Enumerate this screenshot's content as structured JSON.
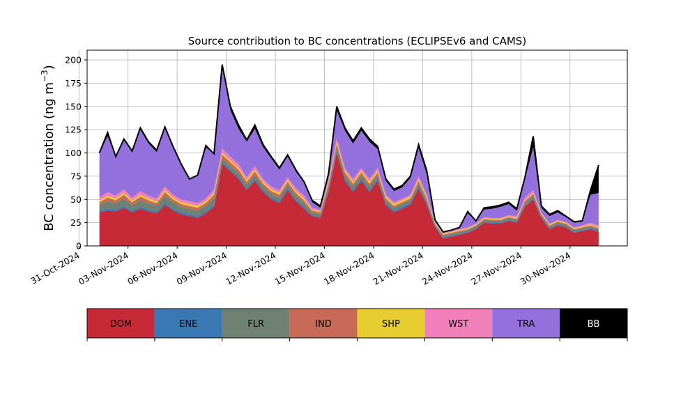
{
  "chart_data": {
    "type": "area",
    "stacked": true,
    "title": "Source contribution to BC concentrations (ECLIPSEv6 and CAMS)",
    "ylabel_base": "BC concentration (ng m",
    "ylabel_sup": "−3",
    "ylabel_close": ")",
    "ylim": [
      0,
      200
    ],
    "yticks": [
      0,
      25,
      50,
      75,
      100,
      125,
      150,
      175,
      200
    ],
    "xlim": [
      "2024-10-31T12:00",
      "2024-12-03T12:00"
    ],
    "xticks": [
      {
        "date": "2024-10-31",
        "label": "31-Oct-2024"
      },
      {
        "date": "2024-11-03",
        "label": "03-Nov-2024"
      },
      {
        "date": "2024-11-06",
        "label": "06-Nov-2024"
      },
      {
        "date": "2024-11-09",
        "label": "09-Nov-2024"
      },
      {
        "date": "2024-11-12",
        "label": "12-Nov-2024"
      },
      {
        "date": "2024-11-15",
        "label": "15-Nov-2024"
      },
      {
        "date": "2024-11-18",
        "label": "18-Nov-2024"
      },
      {
        "date": "2024-11-21",
        "label": "21-Nov-2024"
      },
      {
        "date": "2024-11-24",
        "label": "24-Nov-2024"
      },
      {
        "date": "2024-11-27",
        "label": "27-Nov-2024"
      },
      {
        "date": "2024-11-30",
        "label": "30-Nov-2024"
      }
    ],
    "grid": true,
    "legend_position": "below",
    "x": [
      "2024-11-01T06:00",
      "2024-11-01T18:00",
      "2024-11-02T06:00",
      "2024-11-02T18:00",
      "2024-11-03T06:00",
      "2024-11-03T18:00",
      "2024-11-04T06:00",
      "2024-11-04T18:00",
      "2024-11-05T06:00",
      "2024-11-05T18:00",
      "2024-11-06T06:00",
      "2024-11-06T18:00",
      "2024-11-07T06:00",
      "2024-11-07T18:00",
      "2024-11-08T06:00",
      "2024-11-08T18:00",
      "2024-11-09T06:00",
      "2024-11-09T18:00",
      "2024-11-10T06:00",
      "2024-11-10T18:00",
      "2024-11-11T06:00",
      "2024-11-11T18:00",
      "2024-11-12T06:00",
      "2024-11-12T18:00",
      "2024-11-13T06:00",
      "2024-11-13T18:00",
      "2024-11-14T06:00",
      "2024-11-14T18:00",
      "2024-11-15T06:00",
      "2024-11-15T18:00",
      "2024-11-16T06:00",
      "2024-11-16T18:00",
      "2024-11-17T06:00",
      "2024-11-17T18:00",
      "2024-11-18T06:00",
      "2024-11-18T18:00",
      "2024-11-19T06:00",
      "2024-11-19T18:00",
      "2024-11-20T06:00",
      "2024-11-20T18:00",
      "2024-11-21T06:00",
      "2024-11-21T18:00",
      "2024-11-22T06:00",
      "2024-11-22T18:00",
      "2024-11-23T06:00",
      "2024-11-23T18:00",
      "2024-11-24T06:00",
      "2024-11-24T18:00",
      "2024-11-25T06:00",
      "2024-11-25T18:00",
      "2024-11-26T06:00",
      "2024-11-26T18:00",
      "2024-11-27T06:00",
      "2024-11-27T18:00",
      "2024-11-28T06:00",
      "2024-11-28T18:00",
      "2024-11-29T06:00",
      "2024-11-29T18:00",
      "2024-11-30T06:00",
      "2024-11-30T18:00",
      "2024-12-01T06:00",
      "2024-12-01T18:00"
    ],
    "series": [
      {
        "name": "DOM",
        "color": "#c62a37",
        "values": [
          36,
          38,
          37,
          41,
          36,
          40,
          37,
          35,
          44,
          38,
          34,
          32,
          30,
          35,
          42,
          88,
          80,
          72,
          60,
          70,
          58,
          50,
          46,
          60,
          48,
          40,
          32,
          30,
          58,
          100,
          70,
          58,
          70,
          58,
          70,
          44,
          36,
          40,
          44,
          62,
          44,
          20,
          8,
          10,
          12,
          14,
          18,
          25,
          24,
          24,
          27,
          25,
          42,
          50,
          30,
          18,
          22,
          20,
          14,
          16,
          18,
          15
        ]
      },
      {
        "name": "ENE",
        "color": "#3978b2",
        "values": [
          2,
          2,
          2,
          2,
          2,
          2,
          2,
          2,
          2,
          2,
          2,
          2,
          2,
          2,
          2,
          2,
          2,
          2,
          2,
          2,
          2,
          2,
          2,
          2,
          2,
          2,
          1,
          1,
          2,
          2,
          2,
          2,
          2,
          2,
          2,
          2,
          2,
          2,
          2,
          2,
          2,
          1,
          1,
          1,
          1,
          1,
          1,
          1,
          1,
          1,
          1,
          1,
          1,
          1,
          1,
          1,
          1,
          1,
          1,
          1,
          1,
          1
        ]
      },
      {
        "name": "FLR",
        "color": "#6f8172",
        "values": [
          6,
          8,
          7,
          8,
          6,
          7,
          7,
          6,
          8,
          7,
          6,
          6,
          6,
          6,
          7,
          4,
          4,
          4,
          4,
          4,
          4,
          4,
          4,
          4,
          4,
          4,
          3,
          3,
          4,
          4,
          4,
          4,
          4,
          4,
          4,
          3,
          3,
          3,
          3,
          3,
          3,
          2,
          2,
          2,
          2,
          2,
          2,
          2,
          2,
          2,
          2,
          2,
          3,
          3,
          2,
          2,
          2,
          2,
          2,
          2,
          2,
          2
        ]
      },
      {
        "name": "IND",
        "color": "#c86a58",
        "values": [
          3,
          4,
          3,
          4,
          3,
          4,
          3,
          3,
          4,
          3,
          3,
          3,
          3,
          3,
          4,
          4,
          4,
          4,
          3,
          4,
          3,
          3,
          3,
          3,
          3,
          3,
          2,
          2,
          3,
          4,
          3,
          3,
          3,
          3,
          3,
          2,
          2,
          2,
          2,
          3,
          2,
          1,
          1,
          1,
          1,
          1,
          1,
          1,
          1,
          1,
          1,
          1,
          2,
          2,
          1,
          1,
          1,
          1,
          1,
          1,
          1,
          1
        ]
      },
      {
        "name": "SHP",
        "color": "#e8cd31",
        "values": [
          2,
          2,
          2,
          2,
          2,
          2,
          2,
          2,
          2,
          2,
          2,
          2,
          2,
          2,
          2,
          2,
          2,
          2,
          2,
          2,
          2,
          2,
          2,
          2,
          2,
          2,
          1,
          1,
          2,
          2,
          2,
          2,
          2,
          2,
          2,
          2,
          2,
          2,
          2,
          2,
          2,
          1,
          1,
          1,
          1,
          1,
          1,
          1,
          1,
          1,
          1,
          1,
          1,
          1,
          1,
          1,
          1,
          1,
          1,
          1,
          1,
          1
        ]
      },
      {
        "name": "WST",
        "color": "#f07fba",
        "values": [
          3,
          4,
          3,
          4,
          3,
          4,
          3,
          3,
          4,
          3,
          3,
          3,
          3,
          3,
          4,
          5,
          4,
          4,
          3,
          4,
          3,
          3,
          3,
          3,
          3,
          3,
          2,
          2,
          3,
          4,
          3,
          3,
          3,
          3,
          3,
          2,
          2,
          2,
          2,
          3,
          2,
          1,
          1,
          1,
          1,
          1,
          1,
          1,
          1,
          1,
          1,
          2,
          3,
          3,
          1,
          1,
          1,
          1,
          1,
          1,
          2,
          2
        ]
      },
      {
        "name": "TRA",
        "color": "#9370db",
        "values": [
          48,
          60,
          42,
          52,
          50,
          66,
          56,
          50,
          62,
          50,
          38,
          24,
          30,
          55,
          38,
          86,
          50,
          38,
          38,
          40,
          34,
          30,
          22,
          22,
          18,
          14,
          6,
          2,
          4,
          30,
          40,
          38,
          40,
          40,
          20,
          15,
          12,
          12,
          18,
          30,
          22,
          2,
          1,
          1,
          2,
          15,
          3,
          8,
          10,
          12,
          12,
          6,
          20,
          46,
          5,
          8,
          8,
          5,
          5,
          4,
          30,
          35
        ]
      },
      {
        "name": "BB",
        "color": "#000000",
        "values": [
          0,
          4,
          0,
          2,
          0,
          2,
          2,
          2,
          2,
          2,
          0,
          0,
          0,
          2,
          0,
          4,
          4,
          4,
          2,
          4,
          3,
          2,
          2,
          2,
          2,
          1,
          2,
          2,
          2,
          4,
          3,
          3,
          3,
          3,
          3,
          2,
          2,
          2,
          2,
          4,
          4,
          0,
          0,
          0,
          0,
          2,
          0,
          2,
          2,
          2,
          2,
          2,
          2,
          12,
          2,
          2,
          2,
          1,
          1,
          1,
          5,
          30
        ]
      }
    ]
  }
}
